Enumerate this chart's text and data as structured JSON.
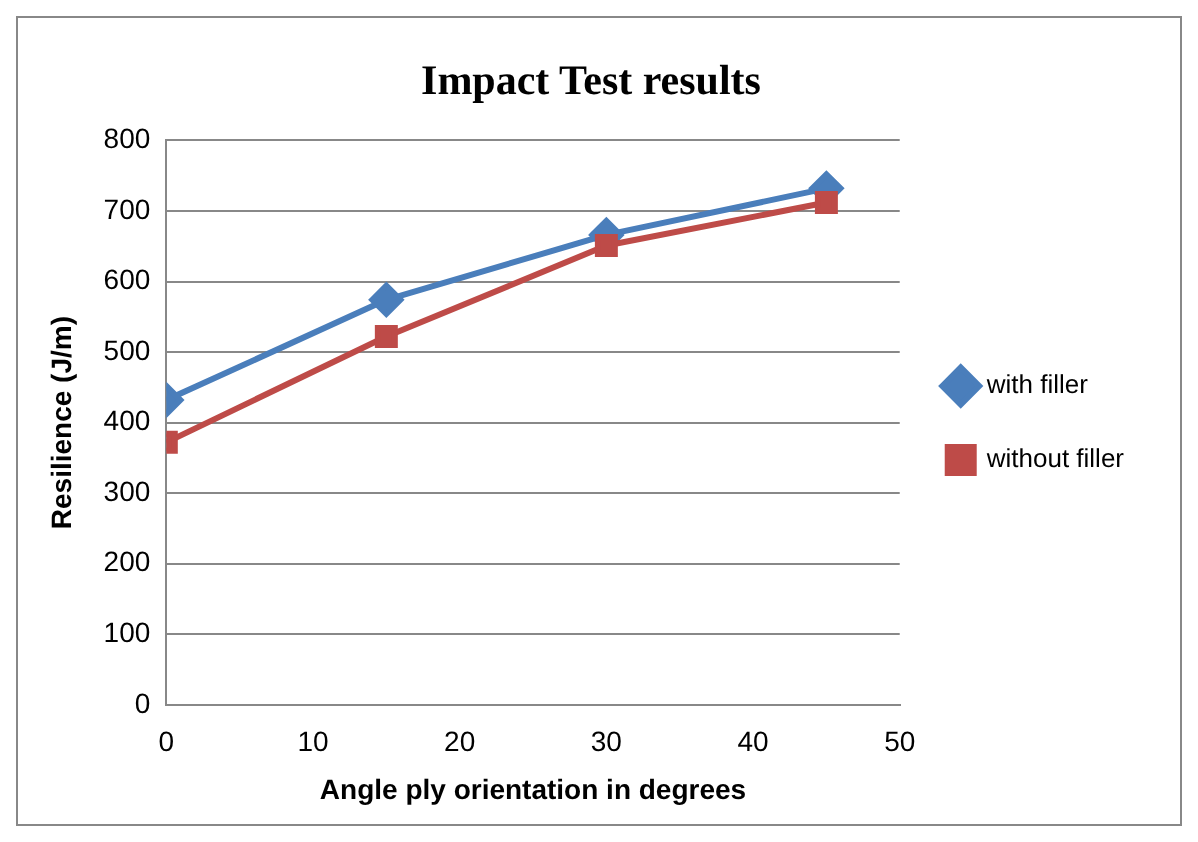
{
  "chart_data": {
    "type": "line",
    "title": "Impact Test results",
    "xlabel": "Angle ply orientation in degrees",
    "ylabel": "Resilience (J/m)",
    "x": [
      0,
      15,
      30,
      45
    ],
    "series": [
      {
        "name": "with filler",
        "color": "#4a7ebb",
        "marker": "diamond",
        "values": [
          432,
          574,
          666,
          732
        ]
      },
      {
        "name": "without filler",
        "color": "#be4b48",
        "marker": "square",
        "values": [
          372,
          522,
          651,
          712
        ]
      }
    ],
    "xlim": [
      0,
      50
    ],
    "xticks": [
      0,
      10,
      20,
      30,
      40,
      50
    ],
    "ylim": [
      0,
      800
    ],
    "yticks": [
      0,
      100,
      200,
      300,
      400,
      500,
      600,
      700,
      800
    ],
    "grid": "y",
    "legend": "right",
    "line_style": "solid"
  }
}
